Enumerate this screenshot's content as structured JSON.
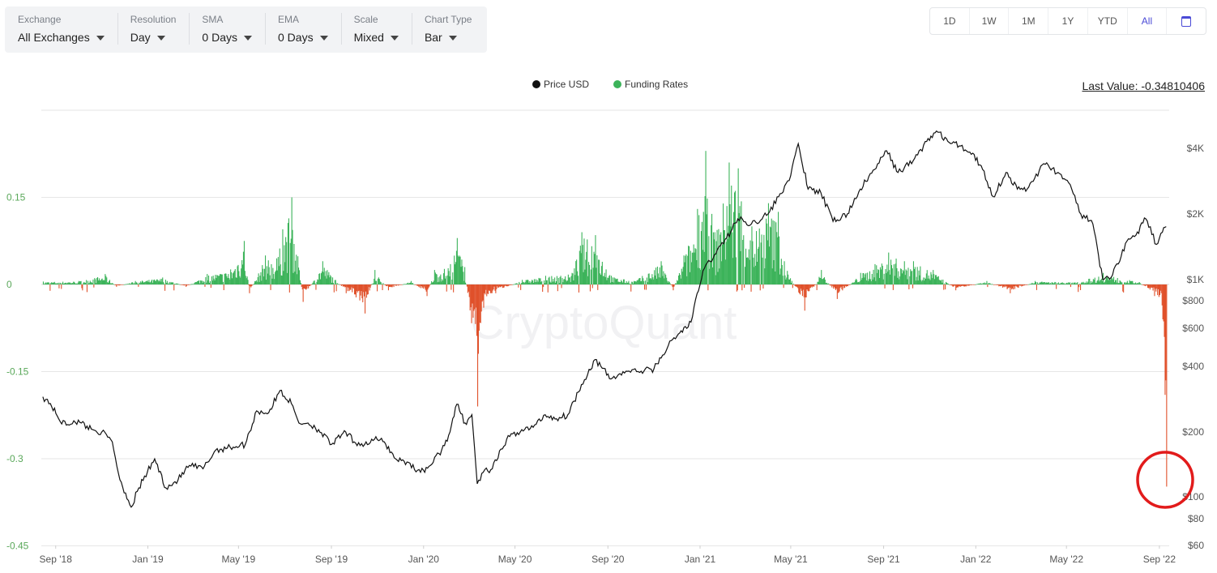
{
  "toolbar": {
    "exchange": {
      "label": "Exchange",
      "value": "All Exchanges"
    },
    "resolution": {
      "label": "Resolution",
      "value": "Day"
    },
    "sma": {
      "label": "SMA",
      "value": "0 Days"
    },
    "ema": {
      "label": "EMA",
      "value": "0 Days"
    },
    "scale": {
      "label": "Scale",
      "value": "Mixed"
    },
    "chart_type": {
      "label": "Chart Type",
      "value": "Bar"
    }
  },
  "range_buttons": [
    "1D",
    "1W",
    "1M",
    "1Y",
    "YTD",
    "All"
  ],
  "range_active": "All",
  "legend": {
    "price": "Price USD",
    "funding": "Funding Rates"
  },
  "last_value": "Last Value: -0.34810406",
  "watermark": "CryptoQuant",
  "colors": {
    "price": "#111111",
    "positive": "#3cb35a",
    "negative": "#e0512b",
    "left_axis": "#5aa85a",
    "highlight_circle": "#e21b1b"
  },
  "chart_data": {
    "type": "bar",
    "series": [
      {
        "name": "Funding Rates",
        "type": "bar",
        "axis": "left"
      },
      {
        "name": "Price USD",
        "type": "line",
        "axis": "right",
        "scale": "log"
      }
    ],
    "left_axis": {
      "ticks": [
        "0.15",
        "0",
        "-0.15",
        "-0.3",
        "-0.45"
      ],
      "ylim": [
        -0.45,
        0.3
      ]
    },
    "right_axis": {
      "ticks": [
        "$4K",
        "$2K",
        "$1K",
        "$800",
        "$600",
        "$400",
        "$200",
        "$100",
        "$80",
        "$60"
      ],
      "ylim": [
        60,
        5000
      ],
      "log": true
    },
    "x_ticks": [
      "Sep '18",
      "Jan '19",
      "May '19",
      "Sep '19",
      "Jan '20",
      "May '20",
      "Sep '20",
      "Jan '21",
      "May '21",
      "Sep '21",
      "Jan '22",
      "May '22",
      "Sep '22"
    ],
    "funding_points": [
      [
        "2018-08-15",
        0.005
      ],
      [
        "2018-10-01",
        0.006
      ],
      [
        "2018-11-05",
        0.018
      ],
      [
        "2018-11-20",
        -0.004
      ],
      [
        "2018-12-15",
        0.006
      ],
      [
        "2019-01-20",
        0.012
      ],
      [
        "2019-02-20",
        -0.004
      ],
      [
        "2019-03-20",
        0.018
      ],
      [
        "2019-04-20",
        0.026
      ],
      [
        "2019-05-08",
        0.075
      ],
      [
        "2019-05-15",
        -0.015
      ],
      [
        "2019-06-05",
        0.05
      ],
      [
        "2019-06-20",
        0.045
      ],
      [
        "2019-06-28",
        0.095
      ],
      [
        "2019-07-10",
        0.15
      ],
      [
        "2019-07-25",
        -0.03
      ],
      [
        "2019-08-20",
        0.04
      ],
      [
        "2019-09-20",
        -0.015
      ],
      [
        "2019-10-15",
        -0.05
      ],
      [
        "2019-10-28",
        0.025
      ],
      [
        "2019-11-15",
        -0.01
      ],
      [
        "2019-12-15",
        0.006
      ],
      [
        "2020-01-05",
        -0.02
      ],
      [
        "2020-01-15",
        0.025
      ],
      [
        "2020-02-05",
        0.035
      ],
      [
        "2020-02-14",
        0.08
      ],
      [
        "2020-02-24",
        0.03
      ],
      [
        "2020-03-12",
        -0.21
      ],
      [
        "2020-03-20",
        -0.04
      ],
      [
        "2020-04-05",
        -0.015
      ],
      [
        "2020-05-10",
        0.008
      ],
      [
        "2020-06-10",
        0.015
      ],
      [
        "2020-07-15",
        0.02
      ],
      [
        "2020-07-28",
        0.09
      ],
      [
        "2020-08-15",
        0.085
      ],
      [
        "2020-09-05",
        0.015
      ],
      [
        "2020-10-05",
        0.006
      ],
      [
        "2020-11-10",
        0.04
      ],
      [
        "2020-11-26",
        -0.01
      ],
      [
        "2020-12-10",
        0.05
      ],
      [
        "2020-12-28",
        0.13
      ],
      [
        "2021-01-08",
        0.23
      ],
      [
        "2021-01-20",
        0.09
      ],
      [
        "2021-02-08",
        0.21
      ],
      [
        "2021-02-20",
        0.2
      ],
      [
        "2021-03-10",
        0.1
      ],
      [
        "2021-04-01",
        0.14
      ],
      [
        "2021-04-14",
        0.125
      ],
      [
        "2021-04-22",
        0.04
      ],
      [
        "2021-05-19",
        -0.045
      ],
      [
        "2021-06-10",
        0.025
      ],
      [
        "2021-07-01",
        -0.025
      ],
      [
        "2021-08-01",
        0.02
      ],
      [
        "2021-08-20",
        0.035
      ],
      [
        "2021-09-07",
        0.055
      ],
      [
        "2021-10-10",
        0.04
      ],
      [
        "2021-11-05",
        0.025
      ],
      [
        "2021-12-05",
        -0.01
      ],
      [
        "2022-01-15",
        0.006
      ],
      [
        "2022-02-15",
        -0.015
      ],
      [
        "2022-03-20",
        0.006
      ],
      [
        "2022-05-15",
        0.004
      ],
      [
        "2022-06-18",
        0.02
      ],
      [
        "2022-08-05",
        0.004
      ],
      [
        "2022-08-25",
        -0.02
      ],
      [
        "2022-09-05",
        -0.06
      ],
      [
        "2022-09-08",
        -0.19
      ],
      [
        "2022-09-10",
        -0.348
      ]
    ],
    "price_points": [
      [
        "2018-08-15",
        290
      ],
      [
        "2018-08-25",
        270
      ],
      [
        "2018-09-05",
        230
      ],
      [
        "2018-09-15",
        215
      ],
      [
        "2018-09-25",
        225
      ],
      [
        "2018-10-05",
        220
      ],
      [
        "2018-10-20",
        205
      ],
      [
        "2018-11-01",
        200
      ],
      [
        "2018-11-15",
        180
      ],
      [
        "2018-11-25",
        120
      ],
      [
        "2018-12-10",
        90
      ],
      [
        "2018-12-20",
        110
      ],
      [
        "2019-01-10",
        150
      ],
      [
        "2019-01-25",
        110
      ],
      [
        "2019-02-10",
        120
      ],
      [
        "2019-02-25",
        140
      ],
      [
        "2019-03-15",
        135
      ],
      [
        "2019-04-01",
        165
      ],
      [
        "2019-04-20",
        170
      ],
      [
        "2019-05-10",
        175
      ],
      [
        "2019-05-25",
        250
      ],
      [
        "2019-06-10",
        245
      ],
      [
        "2019-06-25",
        310
      ],
      [
        "2019-07-10",
        270
      ],
      [
        "2019-07-20",
        220
      ],
      [
        "2019-08-01",
        220
      ],
      [
        "2019-08-15",
        205
      ],
      [
        "2019-09-01",
        175
      ],
      [
        "2019-09-20",
        200
      ],
      [
        "2019-10-01",
        180
      ],
      [
        "2019-10-15",
        175
      ],
      [
        "2019-10-28",
        185
      ],
      [
        "2019-11-10",
        180
      ],
      [
        "2019-11-25",
        150
      ],
      [
        "2019-12-10",
        145
      ],
      [
        "2019-12-28",
        130
      ],
      [
        "2020-01-10",
        140
      ],
      [
        "2020-01-25",
        165
      ],
      [
        "2020-02-05",
        200
      ],
      [
        "2020-02-14",
        268
      ],
      [
        "2020-02-25",
        220
      ],
      [
        "2020-03-05",
        240
      ],
      [
        "2020-03-12",
        115
      ],
      [
        "2020-03-20",
        130
      ],
      [
        "2020-04-01",
        135
      ],
      [
        "2020-04-20",
        185
      ],
      [
        "2020-05-10",
        205
      ],
      [
        "2020-05-25",
        210
      ],
      [
        "2020-06-10",
        240
      ],
      [
        "2020-06-25",
        230
      ],
      [
        "2020-07-10",
        240
      ],
      [
        "2020-07-28",
        330
      ],
      [
        "2020-08-15",
        430
      ],
      [
        "2020-09-05",
        350
      ],
      [
        "2020-09-25",
        380
      ],
      [
        "2020-10-15",
        380
      ],
      [
        "2020-11-01",
        390
      ],
      [
        "2020-11-20",
        500
      ],
      [
        "2020-12-05",
        570
      ],
      [
        "2020-12-20",
        640
      ],
      [
        "2021-01-05",
        1100
      ],
      [
        "2021-01-20",
        1300
      ],
      [
        "2021-02-05",
        1550
      ],
      [
        "2021-02-20",
        1900
      ],
      [
        "2021-03-10",
        1800
      ],
      [
        "2021-04-01",
        2000
      ],
      [
        "2021-04-15",
        2400
      ],
      [
        "2021-05-01",
        3000
      ],
      [
        "2021-05-11",
        4200
      ],
      [
        "2021-05-24",
        2600
      ],
      [
        "2021-06-10",
        2500
      ],
      [
        "2021-06-26",
        1850
      ],
      [
        "2021-07-15",
        2000
      ],
      [
        "2021-08-01",
        2600
      ],
      [
        "2021-08-20",
        3200
      ],
      [
        "2021-09-05",
        3900
      ],
      [
        "2021-09-20",
        3100
      ],
      [
        "2021-10-10",
        3500
      ],
      [
        "2021-10-28",
        4300
      ],
      [
        "2021-11-10",
        4800
      ],
      [
        "2021-11-25",
        4300
      ],
      [
        "2021-12-10",
        4100
      ],
      [
        "2021-12-28",
        3800
      ],
      [
        "2022-01-10",
        3200
      ],
      [
        "2022-01-24",
        2400
      ],
      [
        "2022-02-10",
        3100
      ],
      [
        "2022-02-25",
        2600
      ],
      [
        "2022-03-10",
        2600
      ],
      [
        "2022-04-01",
        3400
      ],
      [
        "2022-04-20",
        3100
      ],
      [
        "2022-05-08",
        2600
      ],
      [
        "2022-05-20",
        2000
      ],
      [
        "2022-06-05",
        1800
      ],
      [
        "2022-06-18",
        1000
      ],
      [
        "2022-07-01",
        1050
      ],
      [
        "2022-07-20",
        1500
      ],
      [
        "2022-08-01",
        1600
      ],
      [
        "2022-08-14",
        1900
      ],
      [
        "2022-08-28",
        1450
      ],
      [
        "2022-09-05",
        1650
      ],
      [
        "2022-09-10",
        1750
      ]
    ]
  }
}
